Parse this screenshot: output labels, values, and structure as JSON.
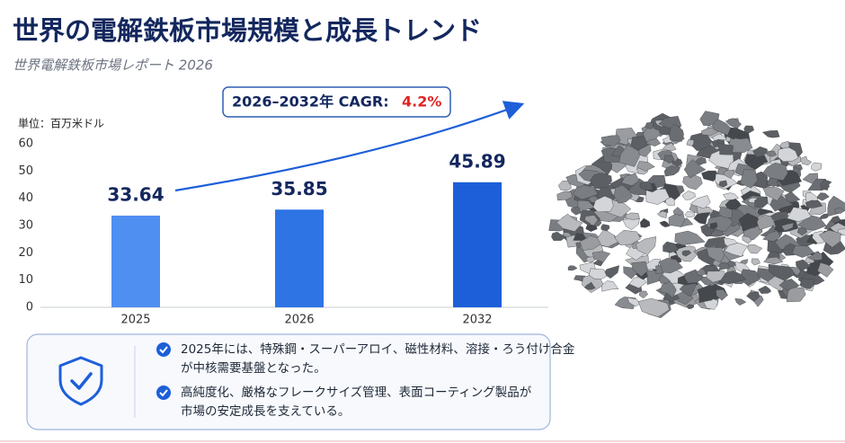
{
  "chart_data": {
    "type": "bar",
    "title": "世界の電解鉄板市場規模と成長トレンド",
    "subtitle": "世界電解鉄板市場レポート 2026",
    "unit_label": "単位：百万米ドル",
    "cagr_label": "2026–2032年 CAGR:",
    "cagr_value": "4.2%",
    "categories": [
      "2025",
      "2026",
      "2032"
    ],
    "values": [
      33.64,
      35.85,
      45.89
    ],
    "colors": [
      "#4f8ff2",
      "#2f74e4",
      "#1d5fd8"
    ],
    "ylim": [
      0,
      60
    ],
    "yticks": [
      0,
      10,
      20,
      30,
      40,
      50,
      60
    ],
    "grid": false
  },
  "notes": {
    "bullets": [
      [
        "2025年には、特殊鋼・スーパーアロイ、磁性材料、溶接・ろう付け合金",
        "が中核需要基盤となった。"
      ],
      [
        "高純度化、厳格なフレークサイズ管理、表面コーティング製品が",
        "市場の安定成長を支えている。"
      ]
    ]
  }
}
